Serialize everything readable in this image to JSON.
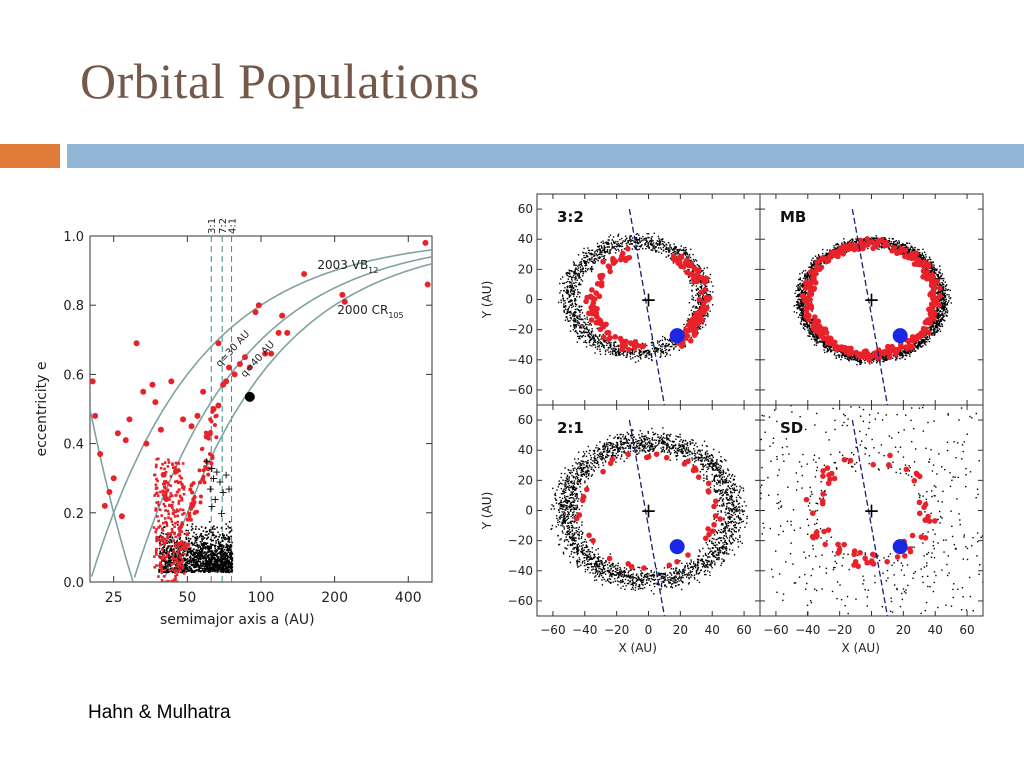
{
  "slide": {
    "title": "Orbital Populations",
    "credit": "Hahn & Mulhatra",
    "colors": {
      "title": "#74594a",
      "accent_orange": "#e07b3a",
      "accent_blue": "#92b6d6"
    }
  },
  "chart_data": [
    {
      "type": "scatter",
      "title": "",
      "xlabel": "semimajor axis a     (AU)",
      "ylabel": "eccentricity e",
      "x_scale": "log",
      "xlim": [
        20,
        500
      ],
      "ylim": [
        0,
        1.0
      ],
      "x_ticks": [
        25,
        50,
        100,
        200,
        400
      ],
      "x_tick_labels": [
        "25",
        "50",
        "100",
        "200",
        "400"
      ],
      "y_ticks": [
        0.0,
        0.2,
        0.4,
        0.6,
        0.8,
        1.0
      ],
      "y_tick_labels": [
        "0.0",
        "0.2",
        "0.4",
        "0.6",
        "0.8",
        "1.0"
      ],
      "resonance_lines": [
        {
          "label": "3:1",
          "a": 62.6
        },
        {
          "label": "7:2",
          "a": 69.4
        },
        {
          "label": "4:1",
          "a": 75.8
        }
      ],
      "curves": [
        {
          "label": "q=30 AU",
          "q": 30
        },
        {
          "label": "q=40 AU",
          "q": 40
        },
        {
          "label": "",
          "q": 20
        }
      ],
      "annotations": [
        {
          "text": "2003 VB",
          "sub": "12",
          "a": 170,
          "e": 0.905
        },
        {
          "text": "2000 CR",
          "sub": "105",
          "a": 205,
          "e": 0.775
        }
      ],
      "marked_objects": [
        {
          "name": "2003 VB12",
          "a": 90,
          "e": 0.535
        }
      ],
      "series": [
        {
          "name": "",
          "color": "#e8222a",
          "points": [
            [
              20.5,
              0.58
            ],
            [
              21,
              0.48
            ],
            [
              22,
              0.37
            ],
            [
              23,
              0.22
            ],
            [
              24,
              0.26
            ],
            [
              25,
              0.3
            ],
            [
              26,
              0.43
            ],
            [
              27,
              0.19
            ],
            [
              28,
              0.41
            ],
            [
              29,
              0.47
            ],
            [
              31,
              0.69
            ],
            [
              33,
              0.55
            ],
            [
              34,
              0.4
            ],
            [
              36,
              0.57
            ],
            [
              37,
              0.52
            ],
            [
              39,
              0.44
            ],
            [
              40,
              0.31
            ],
            [
              41,
              0.24
            ],
            [
              43,
              0.58
            ],
            [
              45,
              0.32
            ],
            [
              48,
              0.47
            ],
            [
              52,
              0.45
            ],
            [
              55,
              0.48
            ],
            [
              58,
              0.55
            ],
            [
              60,
              0.42
            ],
            [
              64,
              0.5
            ],
            [
              67,
              0.51
            ],
            [
              70,
              0.57
            ],
            [
              74,
              0.62
            ],
            [
              78,
              0.6
            ],
            [
              82,
              0.63
            ],
            [
              86,
              0.65
            ],
            [
              90,
              0.62
            ],
            [
              95,
              0.78
            ],
            [
              98,
              0.8
            ],
            [
              104,
              0.66
            ],
            [
              110,
              0.66
            ],
            [
              118,
              0.72
            ],
            [
              122,
              0.77
            ],
            [
              128,
              0.72
            ],
            [
              150,
              0.89
            ],
            [
              215,
              0.83
            ],
            [
              220,
              0.81
            ],
            [
              470,
              0.98
            ],
            [
              480,
              0.86
            ],
            [
              67,
              0.69
            ],
            [
              72,
              0.58
            ]
          ]
        },
        {
          "name": "",
          "color": "#000000",
          "points": [
            [
              60,
              0.35
            ],
            [
              62,
              0.27
            ],
            [
              63,
              0.33
            ],
            [
              64,
              0.3
            ],
            [
              65,
              0.24
            ],
            [
              66,
              0.32
            ],
            [
              68,
              0.29
            ],
            [
              70,
              0.26
            ],
            [
              72,
              0.31
            ],
            [
              74,
              0.27
            ],
            [
              63,
              0.22
            ],
            [
              69,
              0.2
            ]
          ]
        }
      ]
    },
    {
      "type": "scatter",
      "title": "",
      "panels": [
        {
          "label": "3:2",
          "ring": "partial"
        },
        {
          "label": "MB",
          "ring": "full"
        },
        {
          "label": "2:1",
          "ring": "full_wide"
        },
        {
          "label": "SD",
          "ring": "diffuse"
        }
      ],
      "xlabel": "X     (AU)",
      "ylabel": "Y     (AU)",
      "xlim": [
        -70,
        70
      ],
      "ylim": [
        -70,
        70
      ],
      "x_ticks": [
        -60,
        -40,
        -20,
        0,
        20,
        40,
        60
      ],
      "x_tick_labels": [
        "−60",
        "−40",
        "−20",
        "0",
        "20",
        "40",
        "60"
      ],
      "y_ticks": [
        -60,
        -40,
        -20,
        0,
        20,
        40,
        60
      ],
      "y_tick_labels": [
        "−60",
        "−40",
        "−20",
        "0",
        "20",
        "40",
        "60"
      ],
      "sun_marker": {
        "x": 0,
        "y": 0
      },
      "neptune_marker": {
        "x": 18,
        "y": -24,
        "color": "#1a28e6"
      },
      "direction_line": {
        "x1": -12,
        "y1": 60,
        "x2": 10,
        "y2": -70,
        "color": "#1a1a7a"
      }
    }
  ]
}
